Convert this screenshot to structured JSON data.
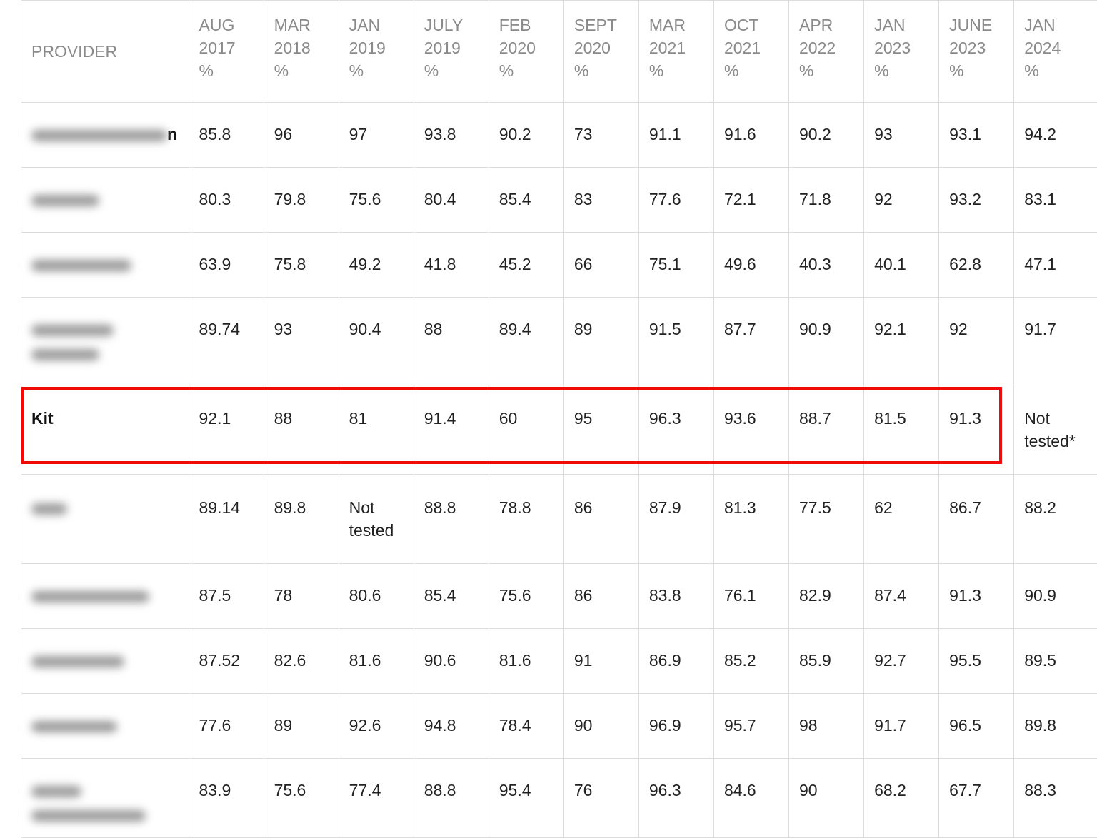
{
  "table": {
    "headers": [
      {
        "label": "PROVIDER"
      },
      {
        "line1": "AUG",
        "line2": "2017",
        "line3": "%"
      },
      {
        "line1": "MAR",
        "line2": "2018",
        "line3": "%"
      },
      {
        "line1": "JAN",
        "line2": "2019",
        "line3": "%"
      },
      {
        "line1": "JULY",
        "line2": "2019",
        "line3": "%"
      },
      {
        "line1": "FEB",
        "line2": "2020",
        "line3": "%"
      },
      {
        "line1": "SEPT",
        "line2": "2020",
        "line3": "%"
      },
      {
        "line1": "MAR",
        "line2": "2021",
        "line3": "%"
      },
      {
        "line1": "OCT",
        "line2": "2021",
        "line3": "%"
      },
      {
        "line1": "APR",
        "line2": "2022",
        "line3": "%"
      },
      {
        "line1": "JAN",
        "line2": "2023",
        "line3": "%"
      },
      {
        "line1": "JUNE",
        "line2": "2023",
        "line3": "%"
      },
      {
        "line1": "JAN",
        "line2": "2024",
        "line3": "%"
      }
    ],
    "rows": [
      {
        "provider": "n",
        "provider_blurred": true,
        "values": [
          "85.8",
          "96",
          "97",
          "93.8",
          "90.2",
          "73",
          "91.1",
          "91.6",
          "90.2",
          "93",
          "93.1",
          "94.2"
        ]
      },
      {
        "provider": "",
        "provider_blurred": true,
        "values": [
          "80.3",
          "79.8",
          "75.6",
          "80.4",
          "85.4",
          "83",
          "77.6",
          "72.1",
          "71.8",
          "92",
          "93.2",
          "83.1"
        ]
      },
      {
        "provider": "",
        "provider_blurred": true,
        "values": [
          "63.9",
          "75.8",
          "49.2",
          "41.8",
          "45.2",
          "66",
          "75.1",
          "49.6",
          "40.3",
          "40.1",
          "62.8",
          "47.1"
        ]
      },
      {
        "provider": "",
        "provider_blurred": true,
        "values": [
          "89.74",
          "93",
          "90.4",
          "88",
          "89.4",
          "89",
          "91.5",
          "87.7",
          "90.9",
          "92.1",
          "92",
          "91.7"
        ]
      },
      {
        "provider": "Kit",
        "provider_blurred": false,
        "highlighted": true,
        "values": [
          "92.1",
          "88",
          "81",
          "91.4",
          "60",
          "95",
          "96.3",
          "93.6",
          "88.7",
          "81.5",
          "91.3",
          "Not tested*"
        ]
      },
      {
        "provider": "",
        "provider_blurred": true,
        "values": [
          "89.14",
          "89.8",
          "Not tested",
          "88.8",
          "78.8",
          "86",
          "87.9",
          "81.3",
          "77.5",
          "62",
          "86.7",
          "88.2"
        ]
      },
      {
        "provider": "",
        "provider_blurred": true,
        "values": [
          "87.5",
          "78",
          "80.6",
          "85.4",
          "75.6",
          "86",
          "83.8",
          "76.1",
          "82.9",
          "87.4",
          "91.3",
          "90.9"
        ]
      },
      {
        "provider": "",
        "provider_blurred": true,
        "values": [
          "87.52",
          "82.6",
          "81.6",
          "90.6",
          "81.6",
          "91",
          "86.9",
          "85.2",
          "85.9",
          "92.7",
          "95.5",
          "89.5"
        ]
      },
      {
        "provider": "",
        "provider_blurred": true,
        "values": [
          "77.6",
          "89",
          "92.6",
          "94.8",
          "78.4",
          "90",
          "96.9",
          "95.7",
          "98",
          "91.7",
          "96.5",
          "89.8"
        ]
      },
      {
        "provider": "",
        "provider_blurred": true,
        "values": [
          "83.9",
          "75.6",
          "77.4",
          "88.8",
          "95.4",
          "76",
          "96.3",
          "84.6",
          "90",
          "68.2",
          "67.7",
          "88.3"
        ]
      }
    ]
  },
  "colors": {
    "highlight": "#f00a0a",
    "header_text": "#8a8a8a",
    "cell_text": "#222222",
    "grid": "#dcdcdc"
  }
}
